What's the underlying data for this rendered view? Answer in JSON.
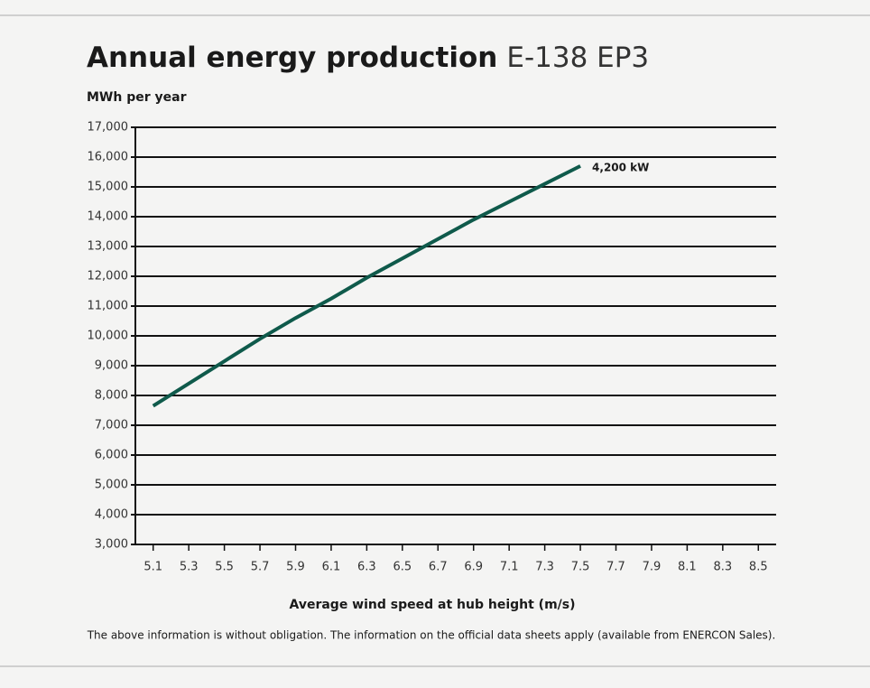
{
  "chart_data": {
    "type": "line",
    "title": "Annual energy production",
    "subtitle": "E-138 EP3",
    "y_label": "MWh per year",
    "x_label": "Average wind speed at hub height (m/s)",
    "footnote": "The above information is without obligation. The information on the official data sheets apply (available from ENERCON Sales).",
    "x": [
      5.1,
      5.3,
      5.5,
      5.7,
      5.9,
      6.1,
      6.3,
      6.5,
      6.7,
      6.9,
      7.1,
      7.3,
      7.5
    ],
    "series": [
      {
        "name": "4,200 kW",
        "color": "#0f5a4b",
        "values": [
          7650,
          8400,
          9150,
          9900,
          10600,
          11250,
          11950,
          12600,
          13250,
          13900,
          14500,
          15100,
          15700
        ]
      }
    ],
    "xlim": [
      5.0,
      8.6
    ],
    "xticks": [
      5.1,
      5.3,
      5.5,
      5.7,
      5.9,
      6.1,
      6.3,
      6.5,
      6.7,
      6.9,
      7.1,
      7.3,
      7.5,
      7.7,
      7.9,
      8.1,
      8.3,
      8.5
    ],
    "ylim": [
      3000,
      17000
    ],
    "yticks": [
      {
        "value": 3000,
        "label": "3,000"
      },
      {
        "value": 4000,
        "label": "4,000"
      },
      {
        "value": 5000,
        "label": "5,000"
      },
      {
        "value": 6000,
        "label": "6,000"
      },
      {
        "value": 7000,
        "label": "7,000"
      },
      {
        "value": 8000,
        "label": "8,000"
      },
      {
        "value": 9000,
        "label": "9,000"
      },
      {
        "value": 10000,
        "label": "10,000"
      },
      {
        "value": 11000,
        "label": "11,000"
      },
      {
        "value": 12000,
        "label": "12,000"
      },
      {
        "value": 13000,
        "label": "13,000"
      },
      {
        "value": 14000,
        "label": "14,000"
      },
      {
        "value": 15000,
        "label": "15,000"
      },
      {
        "value": 16000,
        "label": "16,000"
      },
      {
        "value": 17000,
        "label": "17,000"
      }
    ],
    "grid": true
  }
}
